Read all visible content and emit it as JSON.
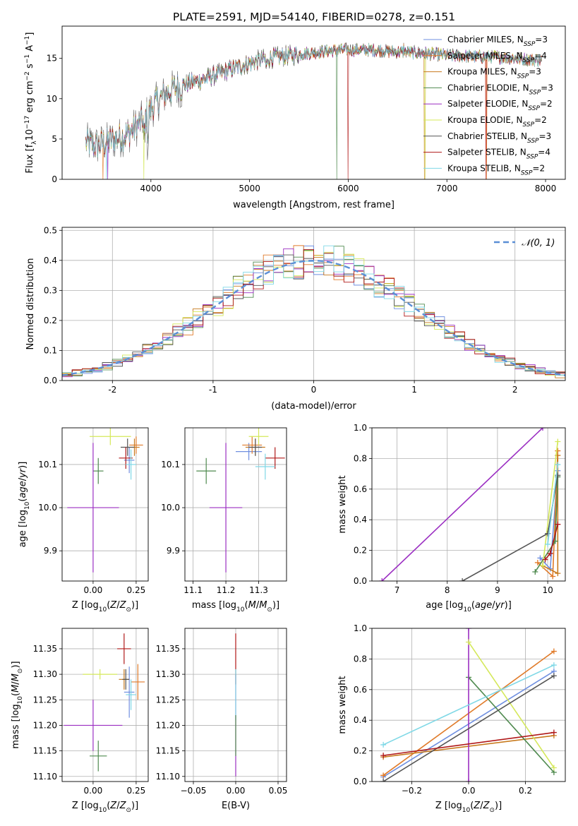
{
  "figure": {
    "title": "PLATE=2591, MJD=54140, FIBERID=0278, z=0.151"
  },
  "colors": {
    "chabrier_miles": "#6f8fe0",
    "salpeter_miles": "#e07b2a",
    "kroupa_miles": "#c87a1e",
    "chabrier_elodie": "#4f8a4f",
    "salpeter_elodie": "#9b2fc2",
    "kroupa_elodie": "#d4e85a",
    "chabrier_stelib": "#555555",
    "salpeter_stelib": "#b01818",
    "kroupa_stelib": "#7fd8e6",
    "gaussian": "#5b8fd6"
  },
  "chart_data": [
    {
      "id": "spectrum",
      "type": "line",
      "xlabel": "wavelength [Angstrom, rest frame]",
      "ylabel": "Flux [f_λ10^-17 erg cm^-2 s^-1 A^-1]",
      "xlim": [
        3100,
        8200
      ],
      "ylim": [
        0,
        19
      ],
      "xticks": [
        4000,
        5000,
        6000,
        7000,
        8000
      ],
      "yticks": [
        0,
        5,
        10,
        15
      ],
      "grid": false,
      "legend_position": "right",
      "legend": [
        {
          "label": "Chabrier MILES, N_SSP=3",
          "color": "#6f8fe0"
        },
        {
          "label": "Salpeter MILES, N_SSP=4",
          "color": "#e07b2a"
        },
        {
          "label": "Kroupa MILES, N_SSP=3",
          "color": "#c87a1e"
        },
        {
          "label": "Chabrier ELODIE, N_SSP=3",
          "color": "#4f8a4f"
        },
        {
          "label": "Salpeter ELODIE, N_SSP=2",
          "color": "#9b2fc2"
        },
        {
          "label": "Kroupa ELODIE, N_SSP=2",
          "color": "#d4e85a"
        },
        {
          "label": "Chabrier STELIB, N_SSP=3",
          "color": "#555555"
        },
        {
          "label": "Salpeter STELIB, N_SSP=4",
          "color": "#b01818"
        },
        {
          "label": "Kroupa STELIB, N_SSP=2",
          "color": "#7fd8e6"
        }
      ],
      "series_envelope": {
        "x": [
          3350,
          3450,
          3550,
          3650,
          3750,
          3850,
          3950,
          4050,
          4150,
          4250,
          4350,
          4500,
          4650,
          4800,
          4950,
          5100,
          5300,
          5500,
          5700,
          5900,
          6100,
          6300,
          6500,
          6700,
          6900,
          7100,
          7300,
          7500,
          7700,
          7900
        ],
        "y": [
          4.5,
          4.2,
          4.6,
          5.0,
          5.5,
          6.5,
          7.8,
          9.5,
          10.6,
          11.3,
          11.8,
          12.3,
          12.9,
          13.6,
          14.2,
          14.8,
          15.2,
          15.5,
          15.8,
          16.0,
          16.1,
          16.0,
          15.8,
          15.7,
          15.5,
          15.3,
          15.2,
          15.2,
          15.0,
          14.8
        ]
      },
      "dips_to_zero": [
        3510,
        3560,
        3930,
        5880,
        6775,
        7400
      ]
    },
    {
      "id": "residuals",
      "type": "histogram",
      "xlabel": "(data-model)/error",
      "ylabel": "Normed distribution",
      "xlim": [
        -2.5,
        2.5
      ],
      "ylim": [
        0,
        0.51
      ],
      "xticks": [
        -2,
        -1,
        0,
        1,
        2
      ],
      "yticks": [
        0.0,
        0.1,
        0.2,
        0.3,
        0.4,
        0.5
      ],
      "grid": true,
      "legend_position": "top-right",
      "legend": [
        {
          "label": "𝒩(0, 1)",
          "style": "dashed",
          "color": "#5b8fd6"
        }
      ],
      "bin_width": 0.1
    },
    {
      "id": "age_vs_Z",
      "type": "scatter",
      "xlabel": "Z [log10(Z/Z⊙)]",
      "ylabel": "age [log10(age/yr)]",
      "xlim": [
        -0.18,
        0.32
      ],
      "ylim": [
        9.83,
        10.185
      ],
      "xticks": [
        0.0,
        0.25
      ],
      "xtick_labels": [
        "0.00",
        "0.25"
      ],
      "yticks": [
        9.9,
        10.0,
        10.1
      ],
      "yticks_labels": [
        "9.9",
        "10.0",
        "10.1"
      ],
      "grid": true,
      "points": [
        {
          "name": "Chabrier MILES",
          "x": 0.21,
          "xerr": 0.03,
          "y": 10.11,
          "yerr": 0.03
        },
        {
          "name": "Salpeter MILES",
          "x": 0.25,
          "xerr": 0.04,
          "y": 10.145,
          "yerr": 0.02
        },
        {
          "name": "Kroupa MILES",
          "x": 0.24,
          "xerr": 0.03,
          "y": 10.14,
          "yerr": 0.02
        },
        {
          "name": "Chabrier ELODIE",
          "x": 0.03,
          "xerr": 0.03,
          "y": 10.085,
          "yerr": 0.03
        },
        {
          "name": "Salpeter ELODIE",
          "x": 0.0,
          "xerr": 0.15,
          "y": 10.0,
          "yerr": 0.15
        },
        {
          "name": "Kroupa ELODIE",
          "x": 0.1,
          "xerr": 0.12,
          "y": 10.165,
          "yerr": 0.02
        },
        {
          "name": "Chabrier STELIB",
          "x": 0.2,
          "xerr": 0.04,
          "y": 10.14,
          "yerr": 0.02
        },
        {
          "name": "Salpeter STELIB",
          "x": 0.19,
          "xerr": 0.04,
          "y": 10.115,
          "yerr": 0.025
        },
        {
          "name": "Kroupa STELIB",
          "x": 0.22,
          "xerr": 0.03,
          "y": 10.1,
          "yerr": 0.035
        }
      ]
    },
    {
      "id": "age_vs_mass",
      "type": "scatter",
      "xlabel": "mass [log10(M/M⊙)]",
      "ylabel": "",
      "xlim": [
        11.075,
        11.385
      ],
      "ylim": [
        9.83,
        10.185
      ],
      "xticks": [
        11.1,
        11.2,
        11.3
      ],
      "xtick_labels": [
        "11.1",
        "11.2",
        "11.3"
      ],
      "yticks": [
        9.9,
        10.0,
        10.1
      ],
      "yticks_labels": [
        "9.9",
        "10.0",
        "10.1"
      ],
      "grid": true,
      "points": [
        {
          "name": "Chabrier MILES",
          "x": 11.27,
          "xerr": 0.04,
          "y": 10.13,
          "yerr": 0.02
        },
        {
          "name": "Salpeter MILES",
          "x": 11.28,
          "xerr": 0.03,
          "y": 10.145,
          "yerr": 0.02
        },
        {
          "name": "Kroupa MILES",
          "x": 11.29,
          "xerr": 0.03,
          "y": 10.14,
          "yerr": 0.02
        },
        {
          "name": "Chabrier ELODIE",
          "x": 11.14,
          "xerr": 0.03,
          "y": 10.085,
          "yerr": 0.03
        },
        {
          "name": "Salpeter ELODIE",
          "x": 11.2,
          "xerr": 0.05,
          "y": 10.0,
          "yerr": 0.15
        },
        {
          "name": "Kroupa ELODIE",
          "x": 11.3,
          "xerr": 0.03,
          "y": 10.165,
          "yerr": 0.02
        },
        {
          "name": "Chabrier STELIB",
          "x": 11.29,
          "xerr": 0.02,
          "y": 10.14,
          "yerr": 0.02
        },
        {
          "name": "Salpeter STELIB",
          "x": 11.35,
          "xerr": 0.03,
          "y": 10.115,
          "yerr": 0.025
        },
        {
          "name": "Kroupa STELIB",
          "x": 11.32,
          "xerr": 0.03,
          "y": 10.095,
          "yerr": 0.03
        }
      ]
    },
    {
      "id": "weight_vs_age",
      "type": "line",
      "xlabel": "age [log10(age/yr)]",
      "ylabel": "mass weight",
      "xlim": [
        6.5,
        10.35
      ],
      "ylim": [
        0,
        1.0
      ],
      "xticks": [
        7,
        8,
        9,
        10
      ],
      "yticks": [
        0.0,
        0.2,
        0.4,
        0.6,
        0.8,
        1.0
      ],
      "grid": true,
      "series": [
        {
          "name": "Chabrier MILES",
          "x": [
            9.85,
            10.05,
            10.2
          ],
          "y": [
            0.15,
            0.08,
            0.72
          ]
        },
        {
          "name": "Salpeter MILES",
          "x": [
            9.8,
            10.1,
            10.2
          ],
          "y": [
            0.12,
            0.03,
            0.85
          ]
        },
        {
          "name": "Kroupa MILES",
          "x": [
            9.9,
            10.2,
            10.2
          ],
          "y": [
            0.1,
            0.05,
            0.82
          ]
        },
        {
          "name": "Chabrier ELODIE",
          "x": [
            9.75,
            10.15,
            10.2
          ],
          "y": [
            0.06,
            0.26,
            0.68
          ]
        },
        {
          "name": "Salpeter ELODIE",
          "x": [
            6.7,
            9.9
          ],
          "y": [
            0.0,
            1.0
          ]
        },
        {
          "name": "Kroupa ELODIE",
          "x": [
            9.9,
            10.2
          ],
          "y": [
            0.1,
            0.91
          ]
        },
        {
          "name": "Chabrier STELIB",
          "x": [
            8.3,
            10.0,
            10.2
          ],
          "y": [
            0.0,
            0.31,
            0.69
          ]
        },
        {
          "name": "Salpeter STELIB",
          "x": [
            9.95,
            10.05,
            10.2
          ],
          "y": [
            0.14,
            0.18,
            0.37
          ]
        },
        {
          "name": "Kroupa STELIB",
          "x": [
            10.0,
            10.2
          ],
          "y": [
            0.24,
            0.76
          ]
        }
      ]
    },
    {
      "id": "mass_vs_Z",
      "type": "scatter",
      "xlabel": "Z [log10(Z/Z⊙)]",
      "ylabel": "mass [log10(M/M⊙)]",
      "xlim": [
        -0.18,
        0.32
      ],
      "ylim": [
        11.09,
        11.39
      ],
      "xticks": [
        0.0,
        0.25
      ],
      "xtick_labels": [
        "0.00",
        "0.25"
      ],
      "yticks": [
        11.1,
        11.15,
        11.2,
        11.25,
        11.3,
        11.35
      ],
      "yticks_labels": [
        "11.10",
        "11.15",
        "11.20",
        "11.25",
        "11.30",
        "11.35"
      ],
      "grid": true,
      "points": [
        {
          "name": "Chabrier MILES",
          "x": 0.21,
          "xerr": 0.03,
          "y": 11.265,
          "yerr": 0.05
        },
        {
          "name": "Salpeter MILES",
          "x": 0.26,
          "xerr": 0.04,
          "y": 11.285,
          "yerr": 0.035
        },
        {
          "name": "Kroupa MILES",
          "x": 0.18,
          "xerr": 0.03,
          "y": 11.29,
          "yerr": 0.02
        },
        {
          "name": "Chabrier ELODIE",
          "x": 0.03,
          "xerr": 0.05,
          "y": 11.14,
          "yerr": 0.03
        },
        {
          "name": "Salpeter ELODIE",
          "x": 0.0,
          "xerr": 0.17,
          "y": 11.2,
          "yerr": 0.05
        },
        {
          "name": "Kroupa ELODIE",
          "x": 0.04,
          "xerr": 0.1,
          "y": 11.3,
          "yerr": 0.01
        },
        {
          "name": "Chabrier STELIB",
          "x": 0.19,
          "xerr": 0.02,
          "y": 11.29,
          "yerr": 0.02
        },
        {
          "name": "Salpeter STELIB",
          "x": 0.18,
          "xerr": 0.04,
          "y": 11.35,
          "yerr": 0.03
        },
        {
          "name": "Kroupa STELIB",
          "x": 0.22,
          "xerr": 0.03,
          "y": 11.26,
          "yerr": 0.03
        }
      ]
    },
    {
      "id": "mass_vs_ebv",
      "type": "scatter",
      "xlabel": "E(B-V)",
      "ylabel": "",
      "xlim": [
        -0.06,
        0.06
      ],
      "ylim": [
        11.09,
        11.39
      ],
      "xticks": [
        -0.05,
        0.0,
        0.05
      ],
      "xtick_labels": [
        "−0.05",
        "0.00",
        "0.05"
      ],
      "yticks": [
        11.1,
        11.15,
        11.2,
        11.25,
        11.3,
        11.35
      ],
      "yticks_labels": [
        "11.10",
        "11.15",
        "11.20",
        "11.25",
        "11.30",
        "11.35"
      ],
      "grid": true,
      "points": [
        {
          "name": "Salpeter ELODIE",
          "x": 0.0,
          "xerr": 0.0,
          "y": 11.2,
          "yerr": 0.1
        },
        {
          "name": "Salpeter STELIB",
          "x": 0.0,
          "xerr": 0.0,
          "y": 11.33,
          "yerr": 0.05
        },
        {
          "name": "Kroupa STELIB",
          "x": 0.0,
          "xerr": 0.0,
          "y": 11.26,
          "yerr": 0.05
        },
        {
          "name": "Chabrier ELODIE",
          "x": 0.0,
          "xerr": 0.0,
          "y": 11.18,
          "yerr": 0.04
        }
      ]
    },
    {
      "id": "weight_vs_Z",
      "type": "line",
      "xlabel": "Z [log10(Z/Z⊙)]",
      "ylabel": "mass weight",
      "xlim": [
        -0.34,
        0.34
      ],
      "ylim": [
        0,
        1.0
      ],
      "xticks": [
        -0.2,
        0.0,
        0.2
      ],
      "xtick_labels": [
        "−0.2",
        "0.0",
        "0.2"
      ],
      "yticks": [
        0.0,
        0.2,
        0.4,
        0.6,
        0.8,
        1.0
      ],
      "grid": true,
      "series": [
        {
          "name": "Chabrier MILES",
          "x": [
            -0.3,
            0.3
          ],
          "y": [
            0.03,
            0.72
          ]
        },
        {
          "name": "Salpeter MILES",
          "x": [
            -0.3,
            0.3
          ],
          "y": [
            0.04,
            0.85
          ]
        },
        {
          "name": "Kroupa MILES",
          "x": [
            -0.3,
            0.3
          ],
          "y": [
            0.16,
            0.3
          ]
        },
        {
          "name": "Chabrier ELODIE",
          "x": [
            0.0,
            0.3
          ],
          "y": [
            0.68,
            0.06
          ]
        },
        {
          "name": "Salpeter ELODIE",
          "x": [
            0.0,
            0.0
          ],
          "y": [
            0.0,
            1.0
          ]
        },
        {
          "name": "Kroupa ELODIE",
          "x": [
            0.0,
            0.3
          ],
          "y": [
            0.91,
            0.09
          ]
        },
        {
          "name": "Chabrier STELIB",
          "x": [
            -0.3,
            0.3
          ],
          "y": [
            0.0,
            0.69
          ]
        },
        {
          "name": "Salpeter STELIB",
          "x": [
            -0.3,
            0.3
          ],
          "y": [
            0.17,
            0.32
          ]
        },
        {
          "name": "Kroupa STELIB",
          "x": [
            -0.3,
            0.3
          ],
          "y": [
            0.24,
            0.76
          ]
        }
      ]
    }
  ]
}
